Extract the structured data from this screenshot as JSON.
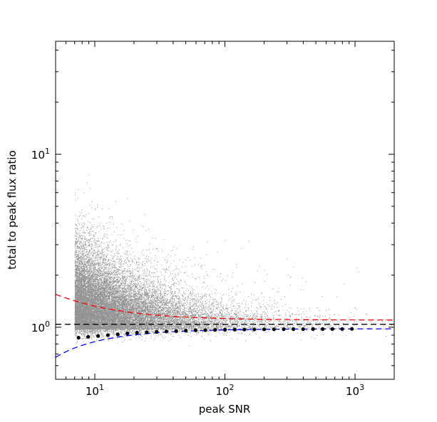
{
  "chart_data": {
    "type": "scatter",
    "title": "",
    "xlabel": "peak SNR",
    "ylabel": "total to peak flux ratio",
    "xscale": "log",
    "yscale": "log",
    "xlim": [
      5,
      2000
    ],
    "ylim": [
      0.5,
      45
    ],
    "grid": false,
    "legend": "none",
    "x_tick_labels": [
      {
        "value": 10,
        "base": "10",
        "exp": "1"
      },
      {
        "value": 100,
        "base": "10",
        "exp": "2"
      },
      {
        "value": 1000,
        "base": "10",
        "exp": "3"
      }
    ],
    "y_tick_labels": [
      {
        "value": 1,
        "base": "10",
        "exp": "0"
      },
      {
        "value": 10,
        "base": "10",
        "exp": "1"
      }
    ],
    "colors": {
      "scatter": "#808080",
      "binned_median": "#000000",
      "upper_envelope": "#ff0000",
      "lower_envelope": "#0000ff",
      "unity_line": "#000000"
    },
    "scatter_cloud": {
      "min_snr": 7,
      "description_points_count_shown": "dense"
    },
    "binned_medians": {
      "x": [
        7.5,
        8.9,
        10.6,
        12.6,
        15.0,
        17.8,
        21.1,
        25.1,
        29.9,
        35.5,
        42.2,
        50.1,
        59.6,
        70.8,
        84.1,
        100,
        119,
        141,
        168,
        200,
        238,
        283,
        336,
        399,
        475,
        564,
        670,
        796,
        946
      ],
      "y": [
        0.87,
        0.88,
        0.89,
        0.9,
        0.91,
        0.92,
        0.93,
        0.935,
        0.94,
        0.945,
        0.95,
        0.955,
        0.96,
        0.962,
        0.965,
        0.967,
        0.969,
        0.97,
        0.971,
        0.972,
        0.973,
        0.974,
        0.975,
        0.975,
        0.976,
        0.976,
        0.977,
        0.977,
        0.978
      ]
    },
    "reference_lines": [
      {
        "type": "horizontal",
        "y": 1.04,
        "style": "dashed",
        "color": "#000000"
      }
    ],
    "envelopes": [
      {
        "style": "dashed",
        "color": "#ff0000",
        "form": "1 + a/snr",
        "a": 2.25,
        "offset": 1.1
      },
      {
        "style": "dashed",
        "color": "#0000ff",
        "form": "1 - a/snr",
        "a": 1.55,
        "offset": 0.98
      }
    ]
  }
}
